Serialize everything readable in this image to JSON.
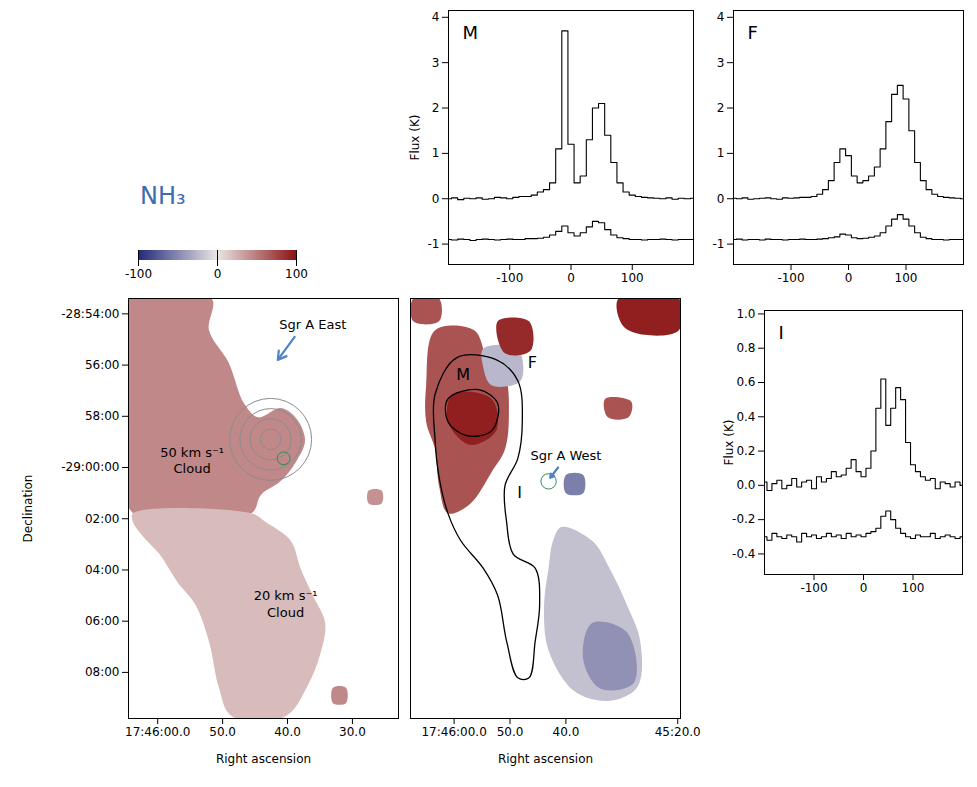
{
  "chart_data": [
    {
      "type": "map",
      "title": "NH₃",
      "xlabel": "Right ascension",
      "ylabel": "Declination",
      "xlim": [
        64.5,
        22.9
      ],
      "ylim": [
        -9.8,
        6.6
      ],
      "xticks": [
        {
          "value": 60,
          "label": "17:46:00.0"
        },
        {
          "value": 50,
          "label": "50.0"
        },
        {
          "value": 40,
          "label": "40.0"
        },
        {
          "value": 30,
          "label": "30.0"
        }
      ],
      "yticks": [
        {
          "value": 6,
          "label": "-28:54:00"
        },
        {
          "value": 4,
          "label": "56:00"
        },
        {
          "value": 2,
          "label": "58:00"
        },
        {
          "value": 0,
          "label": "-29:00:00"
        },
        {
          "value": -2,
          "label": "02:00"
        },
        {
          "value": -4,
          "label": "04:00"
        },
        {
          "value": -6,
          "label": "06:00"
        },
        {
          "value": -8,
          "label": "08:00"
        }
      ],
      "colorbar": {
        "range": [
          -100,
          100
        ],
        "ticks": [
          -100,
          0,
          100
        ]
      },
      "regions": [
        {
          "value": 45,
          "ra": [
            64.5,
            51.7,
            52.1,
            49.1,
            46.7,
            44.5,
            41.1,
            38.8,
            37.3,
            38.8,
            41.1,
            44.1,
            45.6,
            63.8,
            64.5
          ],
          "dec": [
            6.6,
            6.6,
            5.36,
            4.11,
            2.5,
            1.96,
            2.32,
            1.96,
            1.07,
            0.18,
            -0.54,
            -1.07,
            -1.79,
            -1.79,
            1.07
          ]
        },
        {
          "value": 20,
          "ra": [
            63.8,
            45.6,
            43.3,
            39.5,
            38.0,
            36.1,
            34.2,
            35.0,
            37.0,
            40.3,
            48.6,
            50.6,
            52.1,
            54.2,
            57.0,
            59.7,
            62.3,
            63.8
          ],
          "dec": [
            -1.79,
            -1.79,
            -2.14,
            -2.86,
            -3.93,
            -5.0,
            -6.07,
            -7.32,
            -8.57,
            -9.71,
            -9.71,
            -8.57,
            -6.79,
            -5.36,
            -4.46,
            -3.39,
            -2.68,
            -2.14
          ]
        },
        {
          "value": 45,
          "ra": [
            33.0,
            31.0,
            31.0,
            33.0
          ],
          "dec": [
            -8.6,
            -8.6,
            -9.2,
            -9.2
          ]
        },
        {
          "value": 40,
          "ra": [
            27.5,
            25.5,
            25.5,
            27.5
          ],
          "dec": [
            -0.9,
            -0.9,
            -1.4,
            -1.4
          ]
        }
      ],
      "contours": [
        {
          "ra": 42.6,
          "dec": 1.1,
          "radii": [
            0.4,
            0.8,
            1.2,
            1.6
          ],
          "color": "#8c8c8c"
        },
        {
          "ra": 40.6,
          "dec": 0.36,
          "radii": [
            0.25
          ],
          "color": "#2e8b57"
        }
      ],
      "annotations": [
        {
          "text": "Sgr A East",
          "ra": 36.1,
          "dec": 5.6,
          "arrow_from": [
            38.9,
            5.1
          ],
          "arrow_to": [
            41.5,
            4.2
          ]
        },
        {
          "text": "50 km s⁻¹ Cloud",
          "ra": 54.7,
          "dec": 0.3
        },
        {
          "text": "20 km s⁻¹ Cloud",
          "ra": 40.3,
          "dec": -5.3
        }
      ]
    },
    {
      "type": "map",
      "xlabel": "Right ascension",
      "tick_labels": "x",
      "xlim": [
        67.8,
        19.5
      ],
      "ylim": [
        -9.8,
        6.6
      ],
      "xticks": [
        {
          "value": 60,
          "label": "17:46:00.0"
        },
        {
          "value": 50,
          "label": "50.0"
        },
        {
          "value": 40,
          "label": "40.0"
        },
        {
          "value": 20,
          "label": "45:20.0"
        }
      ],
      "regions": [
        {
          "value": 70,
          "ra": [
            63.4,
            56.4,
            54.1,
            50.9,
            50.2,
            50.9,
            53.3,
            57.2,
            61.1,
            62.7,
            63.4,
            65.0,
            65.0
          ],
          "dec": [
            5.36,
            5.36,
            4.29,
            3.57,
            2.14,
            0.71,
            -0.18,
            -1.43,
            -1.79,
            -0.71,
            0.71,
            1.79,
            3.21
          ]
        },
        {
          "value": 95,
          "ra": [
            60.3,
            53.3,
            52.5,
            57.2,
            61.1
          ],
          "dec": [
            2.86,
            2.68,
            1.43,
            0.89,
            1.79
          ]
        },
        {
          "value": -25,
          "ra": [
            54.8,
            48.6,
            48.1,
            53.3,
            54.8
          ],
          "dec": [
            4.64,
            4.64,
            3.39,
            3.21,
            3.93
          ]
        },
        {
          "value": 90,
          "ra": [
            52.2,
            46.6,
            46.3,
            50.9
          ],
          "dec": [
            5.71,
            5.71,
            4.57,
            4.46
          ]
        },
        {
          "value": 95,
          "ra": [
            30.6,
            19.8,
            19.8,
            25.9,
            29.8
          ],
          "dec": [
            6.6,
            6.6,
            5.36,
            5.18,
            5.54
          ]
        },
        {
          "value": 70,
          "ra": [
            67.3,
            62.7,
            62.7,
            67.3
          ],
          "dec": [
            6.6,
            6.6,
            5.71,
            5.71
          ]
        },
        {
          "value": 70,
          "ra": [
            33.0,
            28.3,
            28.8,
            32.5
          ],
          "dec": [
            2.68,
            2.57,
            1.96,
            1.96
          ]
        },
        {
          "value": -55,
          "ra": [
            40.0,
            36.9,
            36.9,
            40.0
          ],
          "dec": [
            -0.29,
            -0.29,
            -1.0,
            -1.0
          ]
        },
        {
          "value": -20,
          "ra": [
            40.8,
            35.3,
            32.2,
            29.1,
            26.7,
            27.2,
            32.2,
            38.4,
            43.1,
            43.9,
            43.1,
            42.3
          ],
          "dec": [
            -2.32,
            -2.86,
            -3.93,
            -5.36,
            -6.79,
            -8.57,
            -9.11,
            -8.75,
            -7.14,
            -5.36,
            -3.93,
            -2.86
          ]
        },
        {
          "value": -45,
          "ra": [
            35.3,
            29.1,
            27.8,
            33.8,
            36.9
          ],
          "dec": [
            -6.07,
            -6.43,
            -8.39,
            -8.64,
            -7.5
          ]
        }
      ],
      "outlines": [
        {
          "color": "#000000",
          "ra": [
            63.4,
            59.5,
            52.5,
            48.6,
            47.8,
            48.6,
            50.9,
            50.6,
            49.4,
            45.5,
            44.7,
            45.5,
            46.6,
            48.6,
            50.6,
            52.2,
            54.8,
            58.8,
            61.1,
            62.7,
            63.4
          ],
          "dec": [
            2.86,
            4.29,
            4.21,
            3.39,
            1.79,
            0.36,
            -0.71,
            -2.14,
            -3.39,
            -3.93,
            -5.36,
            -6.79,
            -8.21,
            -8.21,
            -6.79,
            -5.0,
            -3.93,
            -2.86,
            -1.79,
            -0.36,
            1.07
          ]
        },
        {
          "color": "#000000",
          "ra": [
            61.1,
            55.6,
            52.2,
            53.3,
            57.8,
            61.1
          ],
          "dec": [
            2.68,
            3.04,
            2.5,
            1.43,
            1.25,
            1.79
          ]
        }
      ],
      "contours": [
        {
          "ra": 43.1,
          "dec": -0.54,
          "radii": [
            0.3
          ],
          "color": "#2e8b57"
        }
      ],
      "annotations": [
        {
          "text": "M",
          "ra": 58.4,
          "dec": 3.6
        },
        {
          "text": "F",
          "ra": 46.0,
          "dec": 4.1
        },
        {
          "text": "I",
          "ra": 48.3,
          "dec": -1.0
        },
        {
          "text": "Sgr A West",
          "ra": 40.0,
          "dec": 0.5,
          "arrow_from": [
            41.4,
            0.0
          ],
          "arrow_to": [
            42.8,
            -0.4
          ]
        }
      ]
    },
    {
      "type": "line",
      "title": "M",
      "ylabel": "Flux (K)",
      "x": [
        -200,
        -190,
        -180,
        -170,
        -160,
        -150,
        -140,
        -130,
        -120,
        -110,
        -100,
        -90,
        -80,
        -70,
        -60,
        -50,
        -40,
        -30,
        -20,
        -10,
        0,
        10,
        20,
        30,
        40,
        50,
        60,
        70,
        80,
        90,
        100,
        110,
        120,
        130,
        140,
        150,
        160,
        170,
        180,
        190,
        200
      ],
      "series": [
        {
          "color": "#000000",
          "values": [
            0.0,
            0.02,
            -0.02,
            0.01,
            0.0,
            0.02,
            -0.01,
            0.0,
            0.03,
            0.02,
            0.0,
            0.03,
            0.05,
            0.05,
            0.08,
            0.15,
            0.2,
            0.35,
            1.1,
            3.7,
            1.2,
            0.35,
            0.5,
            1.3,
            2.0,
            2.1,
            1.4,
            0.8,
            0.35,
            0.15,
            0.08,
            0.05,
            0.03,
            0.02,
            0.01,
            0.0,
            0.02,
            -0.01,
            0.01,
            0.0,
            0.01
          ]
        },
        {
          "color": "#000000",
          "values": [
            -0.9,
            -0.91,
            -0.89,
            -0.9,
            -0.92,
            -0.9,
            -0.89,
            -0.9,
            -0.91,
            -0.9,
            -0.89,
            -0.9,
            -0.9,
            -0.88,
            -0.88,
            -0.87,
            -0.85,
            -0.8,
            -0.72,
            -0.6,
            -0.75,
            -0.82,
            -0.75,
            -0.62,
            -0.5,
            -0.53,
            -0.68,
            -0.8,
            -0.86,
            -0.88,
            -0.9,
            -0.9,
            -0.91,
            -0.9,
            -0.9,
            -0.89,
            -0.9,
            -0.91,
            -0.9,
            -0.9,
            -0.9
          ]
        }
      ],
      "xlim": [
        -200,
        200
      ],
      "ylim": [
        -1.45,
        4.15
      ],
      "xticks": [
        -100,
        0,
        100
      ],
      "yticks": [
        -1,
        0,
        1,
        2,
        3,
        4
      ]
    },
    {
      "type": "line",
      "title": "F",
      "x": [
        -200,
        -190,
        -180,
        -170,
        -160,
        -150,
        -140,
        -130,
        -120,
        -110,
        -100,
        -90,
        -80,
        -70,
        -60,
        -50,
        -40,
        -30,
        -20,
        -10,
        0,
        10,
        20,
        30,
        40,
        50,
        60,
        70,
        80,
        90,
        100,
        110,
        120,
        130,
        140,
        150,
        160,
        170,
        180,
        190,
        200
      ],
      "series": [
        {
          "color": "#000000",
          "values": [
            0.01,
            0.0,
            0.02,
            -0.01,
            0.0,
            0.01,
            0.02,
            0.0,
            -0.01,
            0.02,
            0.01,
            0.02,
            0.03,
            0.03,
            0.05,
            0.1,
            0.2,
            0.4,
            0.8,
            1.1,
            0.95,
            0.5,
            0.35,
            0.4,
            0.5,
            0.7,
            1.1,
            1.7,
            2.3,
            2.5,
            2.2,
            1.5,
            0.8,
            0.4,
            0.2,
            0.1,
            0.05,
            0.03,
            0.02,
            0.01,
            0.0
          ]
        },
        {
          "color": "#000000",
          "values": [
            -0.9,
            -0.89,
            -0.91,
            -0.9,
            -0.9,
            -0.91,
            -0.89,
            -0.9,
            -0.9,
            -0.91,
            -0.9,
            -0.9,
            -0.89,
            -0.9,
            -0.9,
            -0.89,
            -0.88,
            -0.86,
            -0.84,
            -0.78,
            -0.8,
            -0.86,
            -0.88,
            -0.87,
            -0.85,
            -0.82,
            -0.75,
            -0.6,
            -0.45,
            -0.35,
            -0.45,
            -0.6,
            -0.75,
            -0.85,
            -0.88,
            -0.9,
            -0.9,
            -0.91,
            -0.9,
            -0.9,
            -0.9
          ]
        }
      ],
      "xlim": [
        -200,
        200
      ],
      "ylim": [
        -1.45,
        4.15
      ],
      "xticks": [
        -100,
        0,
        100
      ],
      "yticks": [
        -1,
        0,
        1,
        2,
        3,
        4
      ]
    },
    {
      "type": "line",
      "title": "I",
      "ylabel": "Flux (K)",
      "x": [
        -200,
        -190,
        -180,
        -170,
        -160,
        -150,
        -140,
        -130,
        -120,
        -110,
        -100,
        -90,
        -80,
        -70,
        -60,
        -50,
        -40,
        -30,
        -20,
        -10,
        0,
        10,
        20,
        30,
        40,
        50,
        60,
        70,
        80,
        90,
        100,
        110,
        120,
        130,
        140,
        150,
        160,
        170,
        180,
        190,
        200
      ],
      "series": [
        {
          "color": "#000000",
          "values": [
            0.02,
            -0.03,
            0.01,
            0.03,
            -0.02,
            0.0,
            0.04,
            -0.01,
            0.02,
            0.03,
            -0.02,
            0.05,
            0.02,
            0.04,
            0.08,
            0.05,
            0.06,
            0.1,
            0.15,
            0.08,
            0.05,
            0.1,
            0.2,
            0.45,
            0.62,
            0.35,
            0.45,
            0.57,
            0.5,
            0.25,
            0.12,
            0.08,
            0.05,
            0.03,
            0.04,
            -0.02,
            0.02,
            0.01,
            -0.01,
            0.02,
            0.0
          ]
        },
        {
          "color": "#000000",
          "values": [
            -0.3,
            -0.32,
            -0.28,
            -0.3,
            -0.31,
            -0.29,
            -0.3,
            -0.33,
            -0.28,
            -0.3,
            -0.29,
            -0.31,
            -0.3,
            -0.28,
            -0.3,
            -0.29,
            -0.31,
            -0.28,
            -0.3,
            -0.29,
            -0.3,
            -0.28,
            -0.27,
            -0.25,
            -0.18,
            -0.15,
            -0.2,
            -0.25,
            -0.28,
            -0.3,
            -0.31,
            -0.29,
            -0.3,
            -0.3,
            -0.28,
            -0.31,
            -0.3,
            -0.29,
            -0.3,
            -0.31,
            -0.3
          ]
        }
      ],
      "xlim": [
        -200,
        200
      ],
      "ylim": [
        -0.52,
        1.02
      ],
      "xticks": [
        -100,
        0,
        100
      ],
      "yticks": [
        {
          "value": -0.4,
          "label": "-0.4"
        },
        {
          "value": -0.2,
          "label": "-0.2"
        },
        {
          "value": 0,
          "label": "0.0"
        },
        0.2,
        0.4,
        0.6,
        0.8,
        {
          "value": 1,
          "label": "1.0"
        }
      ]
    }
  ]
}
